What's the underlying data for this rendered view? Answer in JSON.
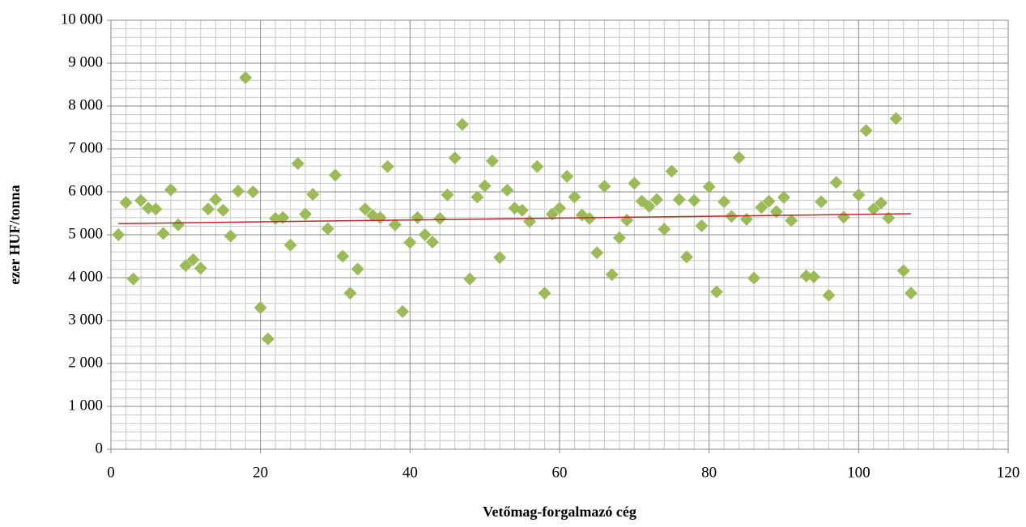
{
  "chart_data": {
    "type": "scatter",
    "y_label": "ezer HUF/tonna",
    "x_label": "Vetőmag-forgalmazó cég",
    "color": "#9bbb59",
    "x": [
      1,
      2,
      3,
      4,
      5,
      6,
      7,
      8,
      9,
      10,
      11,
      12,
      13,
      14,
      15,
      16,
      17,
      18,
      19,
      20,
      21,
      22,
      23,
      24,
      25,
      26,
      27,
      29,
      30,
      31,
      32,
      33,
      34,
      35,
      36,
      37,
      38,
      39,
      40,
      41,
      42,
      43,
      44,
      45,
      46,
      47,
      48,
      49,
      50,
      51,
      52,
      53,
      54,
      55,
      56,
      57,
      58,
      59,
      60,
      61,
      62,
      63,
      64,
      65,
      66,
      67,
      68,
      69,
      70,
      71,
      72,
      73,
      74,
      75,
      76,
      77,
      78,
      79,
      80,
      81,
      82,
      83,
      84,
      85,
      86,
      87,
      88,
      89,
      90,
      91,
      93,
      94,
      95,
      96,
      97,
      98,
      100,
      101,
      102,
      103,
      104,
      105,
      106,
      107
    ],
    "values": [
      5000,
      5750,
      3970,
      5800,
      5620,
      5600,
      5030,
      6050,
      5230,
      4280,
      4420,
      4220,
      5600,
      5820,
      5570,
      4970,
      6020,
      8660,
      6000,
      3300,
      2570,
      5380,
      5400,
      4760,
      6660,
      5480,
      5940,
      5140,
      6390,
      4500,
      3640,
      4200,
      5600,
      5450,
      5400,
      6590,
      5230,
      3210,
      4820,
      5400,
      5000,
      4830,
      5380,
      5930,
      6790,
      7570,
      3970,
      5880,
      6140,
      6720,
      4470,
      6040,
      5620,
      5570,
      5310,
      6590,
      3640,
      5480,
      5620,
      6360,
      5880,
      5460,
      5380,
      4580,
      6130,
      4070,
      4930,
      5340,
      6200,
      5780,
      5660,
      5820,
      5130,
      6480,
      5820,
      4480,
      5800,
      5210,
      6120,
      3670,
      5770,
      5430,
      6800,
      5360,
      3990,
      5640,
      5780,
      5540,
      5870,
      5330,
      4040,
      4020,
      5770,
      3590,
      6220,
      5410,
      5930,
      7430,
      5600,
      5740,
      5390,
      7710,
      4160,
      3640
    ],
    "trendline": {
      "x": [
        1,
        107
      ],
      "values": [
        5260,
        5490
      ],
      "color": "#c0272d"
    },
    "xlim": [
      0,
      120
    ],
    "xticks": [
      0,
      20,
      40,
      60,
      80,
      100,
      120
    ],
    "ylim": [
      0,
      10000
    ],
    "yticks": [
      0,
      {
        "value": 1000,
        "label": "1 000"
      },
      {
        "value": 2000,
        "label": "2 000"
      },
      {
        "value": 3000,
        "label": "3 000"
      },
      {
        "value": 4000,
        "label": "4 000"
      },
      {
        "value": 5000,
        "label": "5 000"
      },
      {
        "value": 6000,
        "label": "6 000"
      },
      {
        "value": 7000,
        "label": "7 000"
      },
      {
        "value": 8000,
        "label": "8 000"
      },
      {
        "value": 9000,
        "label": "9 000"
      },
      {
        "value": 10000,
        "label": "10 000"
      }
    ],
    "grid": true,
    "minor_grid": true
  }
}
